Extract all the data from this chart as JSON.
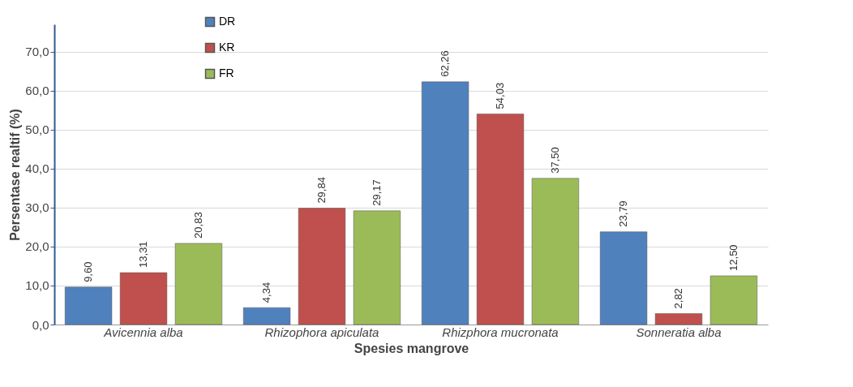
{
  "chart_data": {
    "type": "bar",
    "xlabel": "Spesies mangrove",
    "ylabel": "Persentase realtif (%)",
    "categories": [
      "Avicennia alba",
      "Rhizophora apiculata",
      "Rhizphora mucronata",
      "Sonneratia alba"
    ],
    "series": [
      {
        "name": "DR",
        "color": "#4f81bd",
        "values": [
          9.6,
          4.34,
          62.26,
          23.79
        ],
        "value_labels": [
          "9,60",
          "4,34",
          "62,26",
          "23,79"
        ]
      },
      {
        "name": "KR",
        "color": "#c0504d",
        "values": [
          13.31,
          29.84,
          54.03,
          2.82
        ],
        "value_labels": [
          "13,31",
          "29,84",
          "54,03",
          "2,82"
        ]
      },
      {
        "name": "FR",
        "color": "#9bbb59",
        "values": [
          20.83,
          29.17,
          37.5,
          12.5
        ],
        "value_labels": [
          "20,83",
          "29,17",
          "37,50",
          "12,50"
        ]
      }
    ],
    "ylim": [
      0,
      77
    ],
    "yticks": [
      {
        "value": 0,
        "label": "0,0"
      },
      {
        "value": 10,
        "label": "10,0"
      },
      {
        "value": 20,
        "label": "20,0"
      },
      {
        "value": 30,
        "label": "30,0"
      },
      {
        "value": 40,
        "label": "40,0"
      },
      {
        "value": 50,
        "label": "50,0"
      },
      {
        "value": 60,
        "label": "60,0"
      },
      {
        "value": 70,
        "label": "70,0"
      }
    ],
    "grid": "y",
    "legend": "top left"
  }
}
